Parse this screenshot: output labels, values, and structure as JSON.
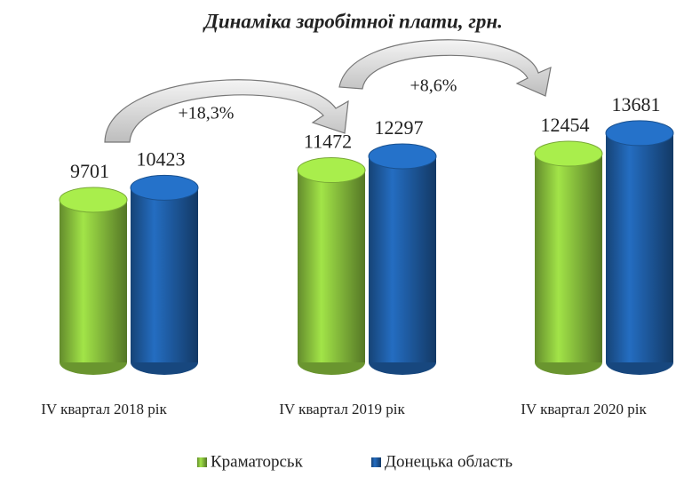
{
  "chart_data": {
    "type": "bar",
    "title": "Динаміка заробітної плати, грн.",
    "categories": [
      "IV квартал 2018 рік",
      "IV квартал 2019 рік",
      "IV квартал 2020 рік"
    ],
    "series": [
      {
        "name": "Краматорськ",
        "color": "#8dc63f",
        "values": [
          9701,
          11472,
          12454
        ]
      },
      {
        "name": "Донецька область",
        "color": "#1f5fa8",
        "values": [
          10423,
          12297,
          13681
        ]
      }
    ],
    "annotations": [
      "+18,3%",
      "+8,6%"
    ],
    "ylim": [
      0,
      15000
    ],
    "legend": "bottom"
  }
}
